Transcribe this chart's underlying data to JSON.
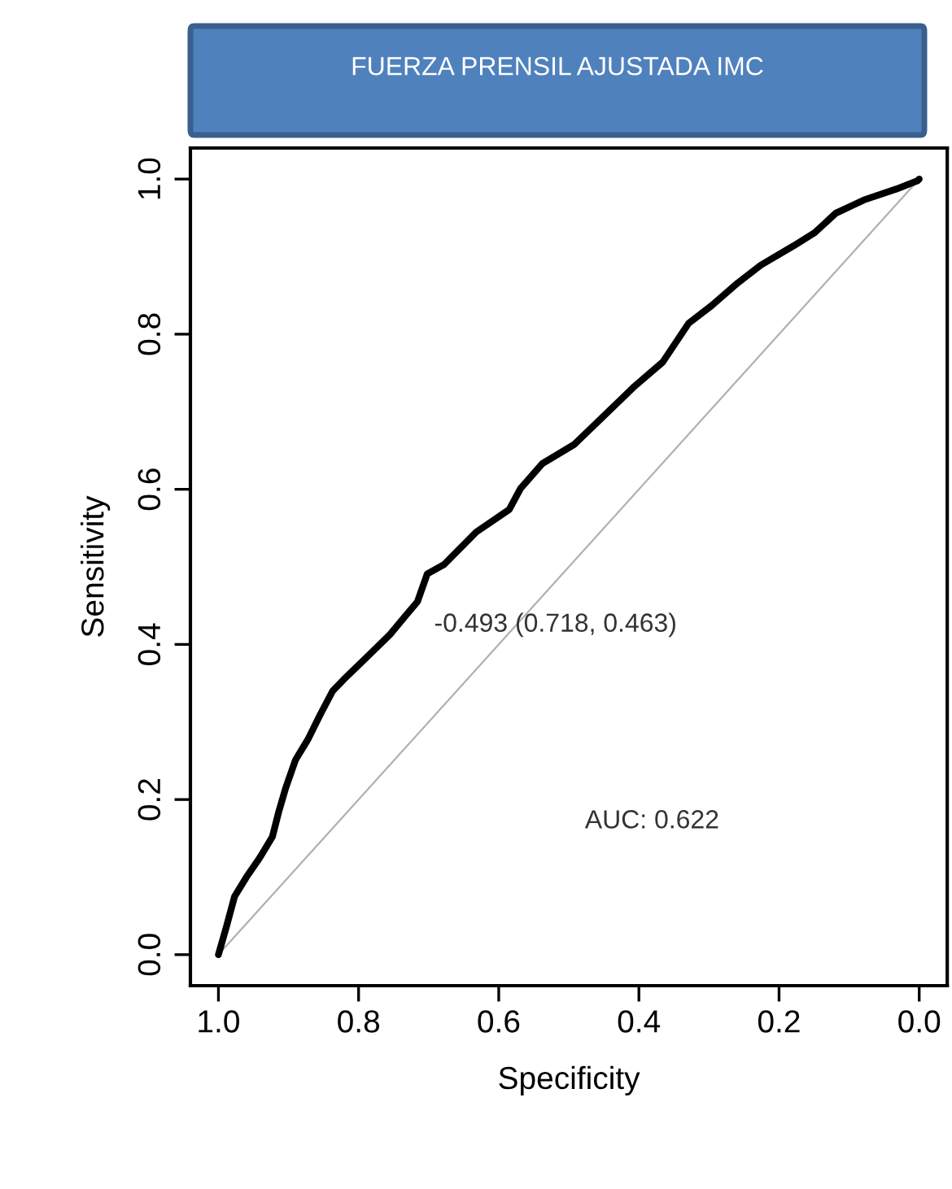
{
  "chart_data": {
    "type": "line",
    "title": "FUERZA PRENSIL AJUSTADA IMC",
    "xlabel": "Specificity",
    "ylabel": "Sensitivity",
    "xlim": [
      1.04,
      -0.04
    ],
    "ylim": [
      -0.04,
      1.04
    ],
    "xticks": [
      {
        "value": 1,
        "label": "1.0"
      },
      0.8,
      0.6,
      0.4,
      0.2,
      {
        "value": 0,
        "label": "0.0"
      }
    ],
    "yticks": [
      {
        "value": 0,
        "label": "0.0"
      },
      0.2,
      0.4,
      0.6,
      0.8,
      {
        "value": 1,
        "label": "1.0"
      }
    ],
    "grid": false,
    "marker": "none",
    "line_style": "solid",
    "series": [
      {
        "color": "#000000",
        "x": [
          1.0,
          0.988,
          0.977,
          0.96,
          0.941,
          0.923,
          0.914,
          0.904,
          0.89,
          0.872,
          0.855,
          0.837,
          0.821,
          0.79,
          0.755,
          0.732,
          0.716,
          0.702,
          0.678,
          0.632,
          0.585,
          0.569,
          0.538,
          0.492,
          0.445,
          0.406,
          0.366,
          0.329,
          0.296,
          0.259,
          0.226,
          0.179,
          0.149,
          0.119,
          0.079,
          0.033,
          0.002,
          0.0
        ],
        "values": [
          0.0,
          0.038,
          0.075,
          0.1,
          0.125,
          0.152,
          0.184,
          0.215,
          0.251,
          0.278,
          0.309,
          0.34,
          0.355,
          0.382,
          0.413,
          0.438,
          0.455,
          0.491,
          0.503,
          0.545,
          0.574,
          0.601,
          0.633,
          0.658,
          0.699,
          0.733,
          0.764,
          0.814,
          0.837,
          0.866,
          0.889,
          0.914,
          0.931,
          0.956,
          0.973,
          0.987,
          0.998,
          1.0
        ]
      },
      {
        "color": "#b0b0b0",
        "x": [
          1.0,
          0.0
        ],
        "values": [
          0.0,
          1.0
        ]
      }
    ],
    "annotations": [
      {
        "text": "-0.493 (0.718, 0.463)",
        "x": 0.718,
        "y": 0.463
      },
      "AUC: 0.622"
    ]
  }
}
